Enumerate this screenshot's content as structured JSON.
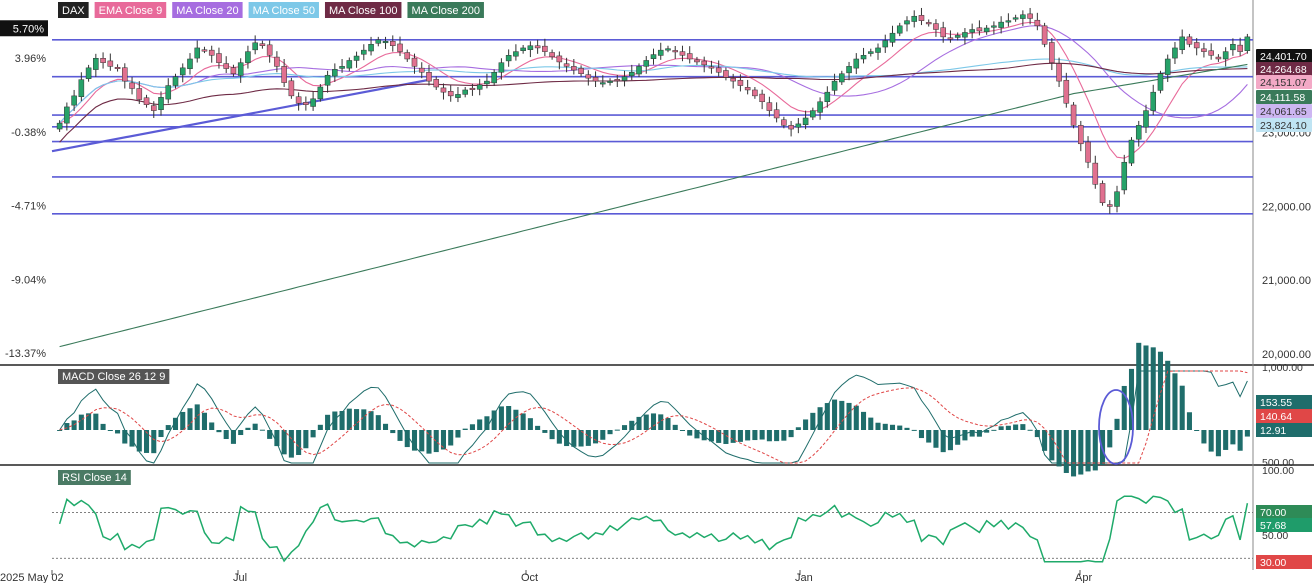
{
  "chart_data": [
    {
      "type": "candlestick",
      "symbol": "DAX",
      "legend": [
        {
          "name": "DAX",
          "color": "#222222"
        },
        {
          "name": "EMA Close 9",
          "color": "#e86a9a"
        },
        {
          "name": "MA Close 20",
          "color": "#a66de0"
        },
        {
          "name": "MA Close 50",
          "color": "#7dc8e8"
        },
        {
          "name": "MA Close 100",
          "color": "#6e2a45"
        },
        {
          "name": "MA Close 200",
          "color": "#3a7a5a"
        }
      ],
      "y_left_ticks": [
        "5.70%",
        "3.96%",
        "-0.38%",
        "-4.71%",
        "-9.04%",
        "-13.37%"
      ],
      "y_right_ticks": [
        "23,000.00",
        "22,000.00",
        "21,000.00",
        "20,000.00"
      ],
      "price_badges": [
        {
          "label": "24,401.70",
          "color": "#111111",
          "series": "DAX"
        },
        {
          "label": "24,264.68",
          "color": "#6e2a45",
          "series": "MA Close 100"
        },
        {
          "label": "24,151.07",
          "color": "#f3a9c6",
          "series": "EMA Close 9"
        },
        {
          "label": "24,111.58",
          "color": "#3a7a5a",
          "series": "MA Close 200"
        },
        {
          "label": "24,061.65",
          "color": "#cdb6f2",
          "series": "MA Close 20"
        },
        {
          "label": "23,824.10",
          "color": "#bfe4f3",
          "series": "MA Close 50"
        }
      ],
      "x_labels": [
        "2025 May 02",
        "Jul",
        "Oct",
        "Jan",
        "Apr"
      ],
      "ylim": [
        19850,
        24800
      ],
      "horizontal_levels": [
        24260,
        23760,
        23240,
        23080,
        22880,
        22400,
        21900
      ],
      "trendline": {
        "from": [
          "May",
          22900
        ],
        "to": [
          "Aug",
          23680
        ]
      },
      "close_series": [
        23130,
        23350,
        23500,
        23720,
        23880,
        24010,
        23950,
        23900,
        23870,
        23700,
        23600,
        23450,
        23380,
        23300,
        23480,
        23640,
        23760,
        23880,
        24000,
        24150,
        24120,
        24050,
        23950,
        23870,
        23800,
        23950,
        24100,
        24220,
        24180,
        24050,
        23900,
        23680,
        23500,
        23400,
        23380,
        23460,
        23620,
        23780,
        23860,
        23900,
        23980,
        24040,
        24120,
        24200,
        24260,
        24240,
        24180,
        24100,
        24000,
        23900,
        23820,
        23700,
        23620,
        23550,
        23500,
        23520,
        23580,
        23600,
        23650,
        23700,
        23820,
        23950,
        24050,
        24100,
        24150,
        24180,
        24150,
        24100,
        24030,
        23960,
        23900,
        23850,
        23800,
        23740,
        23700,
        23680,
        23700,
        23720,
        23760,
        23820,
        23900,
        23980,
        24060,
        24120,
        24140,
        24100,
        24050,
        24000,
        23960,
        23920,
        23880,
        23820,
        23750,
        23700,
        23640,
        23580,
        23500,
        23420,
        23300,
        23200,
        23100,
        23050,
        23120,
        23200,
        23300,
        23420,
        23550,
        23700,
        23800,
        23900,
        24000,
        24050,
        24100,
        24150,
        24250,
        24350,
        24450,
        24520,
        24580,
        24520,
        24480,
        24400,
        24300,
        24280,
        24320,
        24360,
        24400,
        24380,
        24420,
        24450,
        24500,
        24520,
        24560,
        24600,
        24550,
        24450,
        24200,
        23950,
        23700,
        23400,
        23100,
        22850,
        22600,
        22300,
        22050,
        22000,
        22200,
        22600,
        22900,
        23100,
        23300,
        23550,
        23800,
        24000,
        24150,
        24300,
        24200,
        24150,
        24100,
        24050,
        24000,
        24100,
        24200,
        24100,
        24300
      ],
      "pct_base": 23100
    },
    {
      "type": "macd",
      "title": "MACD Close 26 12 9",
      "right_ticks": [
        "1,000.00",
        "500.00"
      ],
      "badges": [
        {
          "label": "153.55",
          "color": "#1f6d6b"
        },
        {
          "label": "140.64",
          "color": "#e04747"
        },
        {
          "label": "12.91",
          "color": "#1f6d6b"
        }
      ]
    },
    {
      "type": "line",
      "title": "RSI Close 14",
      "right_ticks": [
        "100.00",
        "50.00"
      ],
      "levels": [
        70,
        30
      ],
      "badges": [
        {
          "label": "70.00",
          "color": "#2e8b57"
        },
        {
          "label": "57.68",
          "color": "#1f9c6a"
        },
        {
          "label": "30.00",
          "color": "#e04747"
        }
      ]
    }
  ]
}
